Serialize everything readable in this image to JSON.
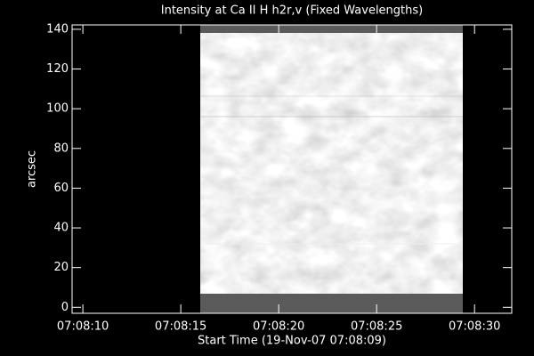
{
  "chart_data": {
    "type": "image",
    "title": "Intensity at Ca II H h2r,v (Fixed Wavelengths)",
    "xlabel": "Start Time (19-Nov-07 07:08:09)",
    "ylabel": "arcsec",
    "xlim": [
      25689.45,
      25711.9
    ],
    "xticks": [
      {
        "value": 25690,
        "label": "07:08:10"
      },
      {
        "value": 25695,
        "label": "07:08:15"
      },
      {
        "value": 25700,
        "label": "07:08:20"
      },
      {
        "value": 25705,
        "label": "07:08:25"
      },
      {
        "value": 25710,
        "label": "07:08:30"
      }
    ],
    "ylim": [
      -3,
      142.2
    ],
    "yticks": [
      0,
      20,
      40,
      60,
      80,
      100,
      120,
      140
    ]
  }
}
